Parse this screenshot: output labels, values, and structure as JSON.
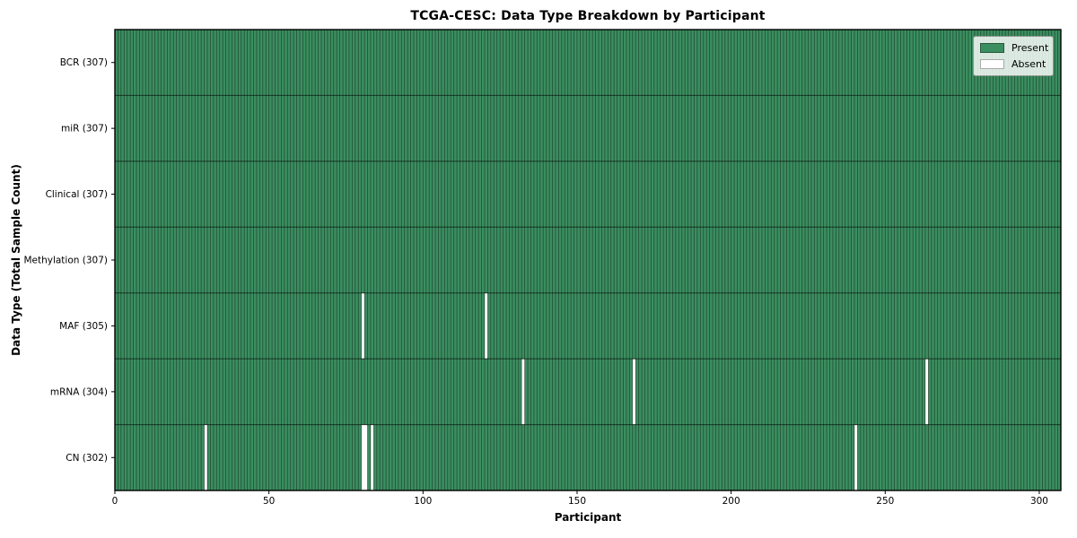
{
  "chart_data": {
    "type": "heatmap",
    "title": "TCGA-CESC: Data Type Breakdown by Participant",
    "xlabel": "Participant",
    "ylabel": "Data Type (Total Sample Count)",
    "n_participants": 307,
    "x_ticks": [
      0,
      50,
      100,
      150,
      200,
      250,
      300
    ],
    "rows": [
      {
        "label": "BCR (307)",
        "data_type": "BCR",
        "present_count": 307,
        "absent_participants": []
      },
      {
        "label": "miR (307)",
        "data_type": "miR",
        "present_count": 307,
        "absent_participants": []
      },
      {
        "label": "Clinical (307)",
        "data_type": "Clinical",
        "present_count": 307,
        "absent_participants": []
      },
      {
        "label": "Methylation (307)",
        "data_type": "Methylation",
        "present_count": 307,
        "absent_participants": []
      },
      {
        "label": "MAF (305)",
        "data_type": "MAF",
        "present_count": 305,
        "absent_participants": [
          80,
          120
        ]
      },
      {
        "label": "mRNA (304)",
        "data_type": "mRNA",
        "present_count": 304,
        "absent_participants": [
          132,
          168,
          263
        ]
      },
      {
        "label": "CN (302)",
        "data_type": "CN",
        "present_count": 302,
        "absent_participants": [
          29,
          80,
          81,
          83,
          240
        ]
      }
    ],
    "legend": {
      "position": "upper right",
      "entries": [
        {
          "label": "Present",
          "color": "#3b8e60",
          "edge": "#26593c"
        },
        {
          "label": "Absent",
          "color": "#ffffff",
          "edge": "#aaaaaa"
        }
      ]
    },
    "colors": {
      "present": "#3b8e60",
      "absent": "#ffffff",
      "cell_edge": "rgba(0,0,0,0.45)",
      "row_divider": "rgba(0,0,0,0.6)",
      "plot_border": "#000000",
      "tick": "#000000",
      "text": "#000000"
    },
    "axis_ranges": {
      "x": [
        0,
        307
      ],
      "y_rows": 7
    }
  }
}
